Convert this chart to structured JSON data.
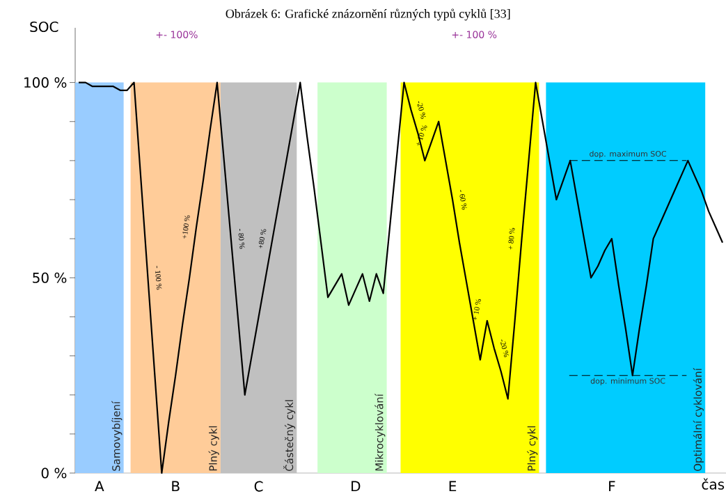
{
  "chart_data": {
    "type": "line",
    "title": "Obrázek 6: Grafické znázornění různých typů cyklů [33]",
    "xlabel": "čas",
    "ylabel": "SOC",
    "categories": [
      null,
      null,
      null,
      "A",
      null,
      null,
      null,
      null,
      null,
      null,
      null,
      null,
      null,
      null,
      "B",
      null,
      null,
      null,
      null,
      null,
      null,
      null,
      null,
      null,
      null,
      null,
      "C",
      null,
      null,
      null,
      null,
      null,
      null,
      null,
      null,
      null,
      null,
      null,
      null,
      null,
      "D",
      null,
      null,
      null,
      null,
      null,
      null,
      null,
      null,
      null,
      null,
      null,
      null,
      null,
      "E",
      null,
      null,
      null,
      null,
      null,
      null,
      null,
      null,
      null,
      null,
      null,
      null,
      null,
      null,
      null,
      null,
      null,
      null,
      null,
      null,
      null,
      null,
      "F",
      null,
      null,
      null,
      null,
      null,
      null,
      null,
      null,
      null,
      null,
      null,
      null,
      null,
      null,
      null,
      null
    ],
    "series": [
      {
        "color": "#000000",
        "values": [
          100,
          100,
          99,
          99,
          99,
          99,
          98,
          98,
          100,
          75,
          50,
          25,
          0,
          13,
          25,
          38,
          50,
          63,
          75,
          88,
          100,
          80,
          60,
          40,
          20,
          30,
          40,
          50,
          60,
          70,
          80,
          90,
          100,
          86,
          73,
          59,
          45,
          48,
          51,
          43,
          47,
          51,
          44,
          51,
          46,
          64,
          82,
          100,
          93,
          87,
          80,
          85,
          90,
          80,
          70,
          59,
          49,
          39,
          29,
          39,
          32,
          26,
          19,
          39,
          60,
          80,
          100,
          90,
          80,
          70,
          75,
          80,
          70,
          60,
          50,
          53,
          57,
          60,
          48,
          37,
          25,
          37,
          48,
          60,
          64,
          68,
          72,
          76,
          80,
          76,
          72,
          67,
          63,
          59
        ]
      }
    ],
    "ylim": [
      0,
      114
    ],
    "yticks": [
      {
        "value": 0,
        "label": "0 %"
      },
      {
        "value": 10,
        "label": null
      },
      {
        "value": 20,
        "label": null
      },
      {
        "value": 30,
        "label": null
      },
      {
        "value": 40,
        "label": null
      },
      {
        "value": 50,
        "label": "50 %"
      },
      {
        "value": 60,
        "label": null
      },
      {
        "value": 70,
        "label": null
      },
      {
        "value": 80,
        "label": null
      },
      {
        "value": 90,
        "label": null
      },
      {
        "value": 100,
        "label": "100 %"
      }
    ],
    "ref_lines": [
      {
        "axis": "y",
        "value": 80,
        "label": "dop. maximum SOC",
        "color": "#000000",
        "line_style": "dashed"
      },
      {
        "axis": "y",
        "value": 25,
        "label": "dop. minimum SOC",
        "color": "#000000",
        "line_style": "dashed"
      }
    ],
    "annotations": [
      "+- 100%",
      "+- 100 %",
      "Samovybíjení",
      "Plný cykl",
      "Částečný cykl",
      "Mikrocyklování",
      "Plný cykl",
      "Optimální cyklování",
      "- 100 %",
      "+100 %",
      "- 80 %",
      "+80 %",
      "-20 %",
      "+ 10 %",
      "- 60 %",
      "+ 10 %",
      "-20 %",
      "+ 80 %"
    ],
    "grid": false,
    "marker": "none",
    "line_style": "solid"
  }
}
